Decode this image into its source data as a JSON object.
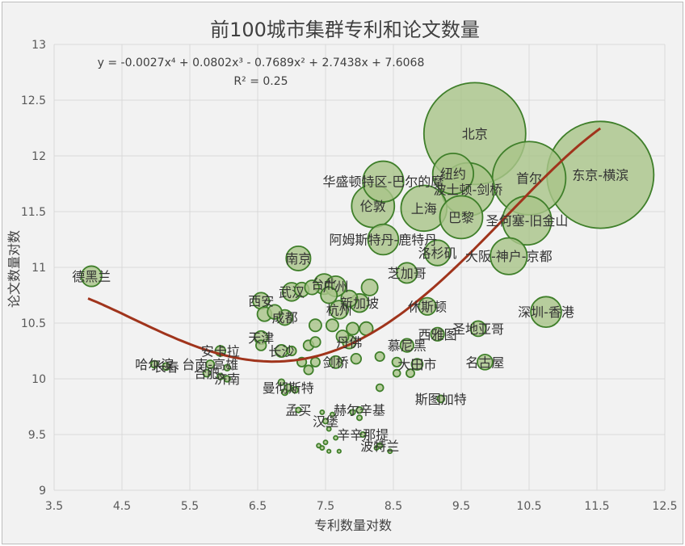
{
  "chart_data": {
    "type": "bubble",
    "title": "前100城市集群专利和论文数量",
    "xlabel": "专利数量对数",
    "ylabel": "论文数量对数",
    "xlim": [
      3.5,
      12.5
    ],
    "ylim": [
      9,
      13
    ],
    "x_ticks": [
      "3.5",
      "4.5",
      "5.5",
      "6.5",
      "7.5",
      "8.5",
      "9.5",
      "10.5",
      "11.5",
      "12.5"
    ],
    "y_ticks": [
      "9",
      "9.5",
      "10",
      "10.5",
      "11",
      "11.5",
      "12",
      "12.5",
      "13"
    ],
    "grid": true,
    "trendline": {
      "type": "polynomial",
      "equation_label": "y = -0.0027x⁴ + 0.0802x³ - 0.7689x² + 2.7438x + 7.6068",
      "r2_label": "R² = 0.25",
      "coefficients": [
        -0.0027,
        0.0802,
        -0.7689,
        2.7438,
        7.6068
      ],
      "x_range": [
        4.0,
        11.55
      ],
      "color": "#a0341c"
    },
    "bubble_fill": "#a9c58a",
    "bubble_stroke": "#3f7f2a",
    "label_color": "#333333",
    "points": [
      {
        "name": "北京",
        "x": 9.7,
        "y": 12.2,
        "r": 1.0
      },
      {
        "name": "东京-横滨",
        "x": 11.55,
        "y": 11.83,
        "r": 1.05
      },
      {
        "name": "首尔",
        "x": 10.5,
        "y": 11.8,
        "r": 0.72
      },
      {
        "name": "纽约",
        "x": 9.38,
        "y": 11.84,
        "r": 0.4
      },
      {
        "name": "华盛顿特区-巴尔的摩",
        "x": 8.35,
        "y": 11.77,
        "r": 0.4
      },
      {
        "name": "波士顿-剑桥",
        "x": 9.6,
        "y": 11.7,
        "r": 0.52
      },
      {
        "name": "伦敦",
        "x": 8.2,
        "y": 11.55,
        "r": 0.42
      },
      {
        "name": "上海",
        "x": 8.95,
        "y": 11.53,
        "r": 0.45
      },
      {
        "name": "巴黎",
        "x": 9.5,
        "y": 11.45,
        "r": 0.42
      },
      {
        "name": "圣何塞-旧金山",
        "x": 10.47,
        "y": 11.42,
        "r": 0.48
      },
      {
        "name": "阿姆斯特丹-鹿特丹",
        "x": 8.35,
        "y": 11.25,
        "r": 0.3
      },
      {
        "name": "洛杉矶",
        "x": 9.15,
        "y": 11.13,
        "r": 0.25
      },
      {
        "name": "大阪-神户-京都",
        "x": 10.2,
        "y": 11.1,
        "r": 0.36
      },
      {
        "name": "南京",
        "x": 7.1,
        "y": 11.08,
        "r": 0.24
      },
      {
        "name": "芝加哥",
        "x": 8.7,
        "y": 10.95,
        "r": 0.2
      },
      {
        "name": "德黑兰",
        "x": 4.05,
        "y": 10.92,
        "r": 0.2
      },
      {
        "name": "台北",
        "x": 7.48,
        "y": 10.85,
        "r": 0.2
      },
      {
        "name": "广州",
        "x": 7.65,
        "y": 10.83,
        "r": 0.2
      },
      {
        "name": "武汉",
        "x": 7.0,
        "y": 10.78,
        "r": 0.18
      },
      {
        "name": "西安",
        "x": 6.55,
        "y": 10.7,
        "r": 0.16
      },
      {
        "name": "新加坡",
        "x": 8.0,
        "y": 10.68,
        "r": 0.18
      },
      {
        "name": "休斯顿",
        "x": 9.0,
        "y": 10.65,
        "r": 0.17
      },
      {
        "name": "杭州",
        "x": 7.7,
        "y": 10.62,
        "r": 0.18
      },
      {
        "name": "深圳-香港",
        "x": 10.75,
        "y": 10.6,
        "r": 0.3
      },
      {
        "name": "成都",
        "x": 6.9,
        "y": 10.55,
        "r": 0.15
      },
      {
        "name": "圣地亚哥",
        "x": 9.75,
        "y": 10.45,
        "r": 0.15
      },
      {
        "name": "西雅图",
        "x": 9.15,
        "y": 10.4,
        "r": 0.13
      },
      {
        "name": "天津",
        "x": 6.55,
        "y": 10.37,
        "r": 0.13
      },
      {
        "name": "安卡拉",
        "x": 5.95,
        "y": 10.25,
        "r": 0.1
      },
      {
        "name": "丹佛",
        "x": 7.85,
        "y": 10.33,
        "r": 0.13
      },
      {
        "name": "慕尼黑",
        "x": 8.7,
        "y": 10.3,
        "r": 0.13
      },
      {
        "name": "长沙",
        "x": 6.85,
        "y": 10.25,
        "r": 0.12
      },
      {
        "name": "名古屋",
        "x": 9.85,
        "y": 10.15,
        "r": 0.15
      },
      {
        "name": "剑桥",
        "x": 7.65,
        "y": 10.15,
        "r": 0.12
      },
      {
        "name": "大田市",
        "x": 8.85,
        "y": 10.13,
        "r": 0.11
      },
      {
        "name": "台南-高雄",
        "x": 5.8,
        "y": 10.13,
        "r": 0.08
      },
      {
        "name": "哈尔滨",
        "x": 4.98,
        "y": 10.13,
        "r": 0.07
      },
      {
        "name": "长春",
        "x": 5.15,
        "y": 10.11,
        "r": 0.07
      },
      {
        "name": "合肥",
        "x": 5.75,
        "y": 10.05,
        "r": 0.07
      },
      {
        "name": "济南",
        "x": 6.05,
        "y": 10.0,
        "r": 0.06
      },
      {
        "name": "曼彻斯特",
        "x": 6.95,
        "y": 9.92,
        "r": 0.07
      },
      {
        "name": "斯图加特",
        "x": 9.2,
        "y": 9.82,
        "r": 0.07
      },
      {
        "name": "赫尔辛基",
        "x": 8.0,
        "y": 9.72,
        "r": 0.06
      },
      {
        "name": "孟买",
        "x": 7.1,
        "y": 9.72,
        "r": 0.05
      },
      {
        "name": "汉堡",
        "x": 7.5,
        "y": 9.62,
        "r": 0.05
      },
      {
        "name": "辛辛那提",
        "x": 8.05,
        "y": 9.5,
        "r": 0.05
      },
      {
        "name": "波特兰",
        "x": 8.3,
        "y": 9.4,
        "r": 0.05
      },
      {
        "x": 7.9,
        "y": 10.45,
        "r": 0.12
      },
      {
        "x": 7.6,
        "y": 10.48,
        "r": 0.12
      },
      {
        "x": 7.35,
        "y": 10.48,
        "r": 0.12
      },
      {
        "x": 7.75,
        "y": 10.38,
        "r": 0.12
      },
      {
        "x": 8.1,
        "y": 10.45,
        "r": 0.13
      },
      {
        "x": 7.25,
        "y": 10.3,
        "r": 0.1
      },
      {
        "x": 7.35,
        "y": 10.33,
        "r": 0.1
      },
      {
        "x": 7.0,
        "y": 10.25,
        "r": 0.09
      },
      {
        "x": 7.15,
        "y": 10.15,
        "r": 0.09
      },
      {
        "x": 7.35,
        "y": 10.15,
        "r": 0.09
      },
      {
        "x": 7.25,
        "y": 10.08,
        "r": 0.09
      },
      {
        "x": 6.6,
        "y": 10.58,
        "r": 0.14
      },
      {
        "x": 6.75,
        "y": 10.6,
        "r": 0.14
      },
      {
        "x": 6.55,
        "y": 10.3,
        "r": 0.1
      },
      {
        "x": 7.15,
        "y": 10.8,
        "r": 0.14
      },
      {
        "x": 7.3,
        "y": 10.82,
        "r": 0.14
      },
      {
        "x": 7.55,
        "y": 10.75,
        "r": 0.16
      },
      {
        "x": 7.85,
        "y": 10.72,
        "r": 0.16
      },
      {
        "x": 8.15,
        "y": 10.82,
        "r": 0.16
      },
      {
        "x": 7.95,
        "y": 10.18,
        "r": 0.1
      },
      {
        "x": 8.3,
        "y": 10.2,
        "r": 0.09
      },
      {
        "x": 8.55,
        "y": 10.15,
        "r": 0.09
      },
      {
        "x": 8.75,
        "y": 10.05,
        "r": 0.08
      },
      {
        "x": 8.55,
        "y": 10.05,
        "r": 0.07
      },
      {
        "x": 5.95,
        "y": 10.02,
        "r": 0.06
      },
      {
        "x": 6.05,
        "y": 10.1,
        "r": 0.06
      },
      {
        "x": 6.85,
        "y": 9.97,
        "r": 0.06
      },
      {
        "x": 7.05,
        "y": 9.9,
        "r": 0.06
      },
      {
        "x": 6.9,
        "y": 9.88,
        "r": 0.06
      },
      {
        "x": 8.3,
        "y": 9.92,
        "r": 0.07
      },
      {
        "x": 7.45,
        "y": 9.7,
        "r": 0.04
      },
      {
        "x": 7.6,
        "y": 9.68,
        "r": 0.04
      },
      {
        "x": 7.9,
        "y": 9.7,
        "r": 0.05
      },
      {
        "x": 8.0,
        "y": 9.65,
        "r": 0.05
      },
      {
        "x": 7.55,
        "y": 9.55,
        "r": 0.04
      },
      {
        "x": 7.65,
        "y": 9.47,
        "r": 0.04
      },
      {
        "x": 7.4,
        "y": 9.4,
        "r": 0.04
      },
      {
        "x": 7.45,
        "y": 9.38,
        "r": 0.04
      },
      {
        "x": 7.5,
        "y": 9.43,
        "r": 0.04
      },
      {
        "x": 7.55,
        "y": 9.35,
        "r": 0.03
      },
      {
        "x": 7.7,
        "y": 9.35,
        "r": 0.03
      },
      {
        "x": 8.25,
        "y": 9.38,
        "r": 0.04
      },
      {
        "x": 8.45,
        "y": 9.35,
        "r": 0.04
      }
    ]
  }
}
